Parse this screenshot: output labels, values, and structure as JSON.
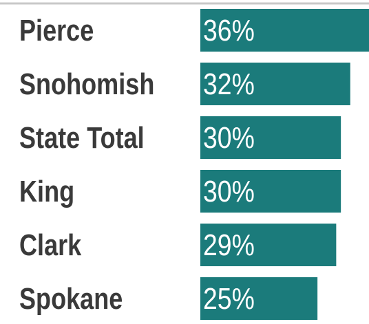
{
  "chart_data": {
    "type": "barh",
    "categories": [
      "Pierce",
      "Snohomish",
      "State Total",
      "King",
      "Clark",
      "Spokane"
    ],
    "values": [
      36,
      32,
      30,
      30,
      29,
      25
    ],
    "value_labels": [
      "36%",
      "32%",
      "30%",
      "30%",
      "29%",
      "25%"
    ],
    "color": "#1b7b7b",
    "xlim": [
      0,
      36
    ]
  }
}
